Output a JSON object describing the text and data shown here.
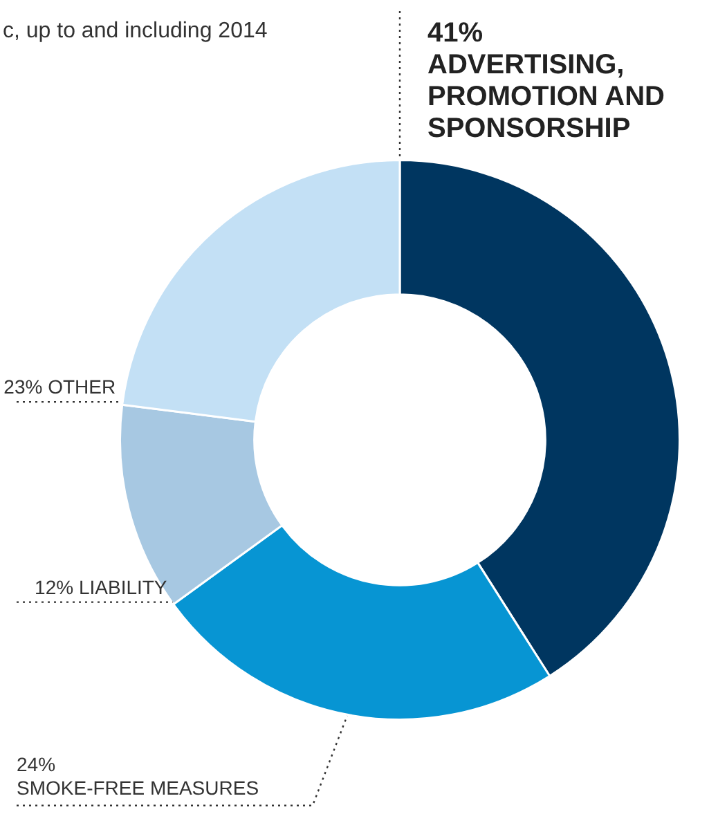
{
  "chart_data": {
    "type": "donut",
    "title": "c, up to and including 2014",
    "categories": [
      "ADVERTISING, PROMOTION AND SPONSORSHIP",
      "SMOKE-FREE MEASURES",
      "LIABILITY",
      "OTHER"
    ],
    "values": [
      41,
      24,
      12,
      23
    ],
    "value_labels": [
      "41%",
      "24%",
      "12%",
      "23%"
    ],
    "colors": [
      "#003660",
      "#0795d3",
      "#a7c8e2",
      "#c3e0f5"
    ]
  }
}
